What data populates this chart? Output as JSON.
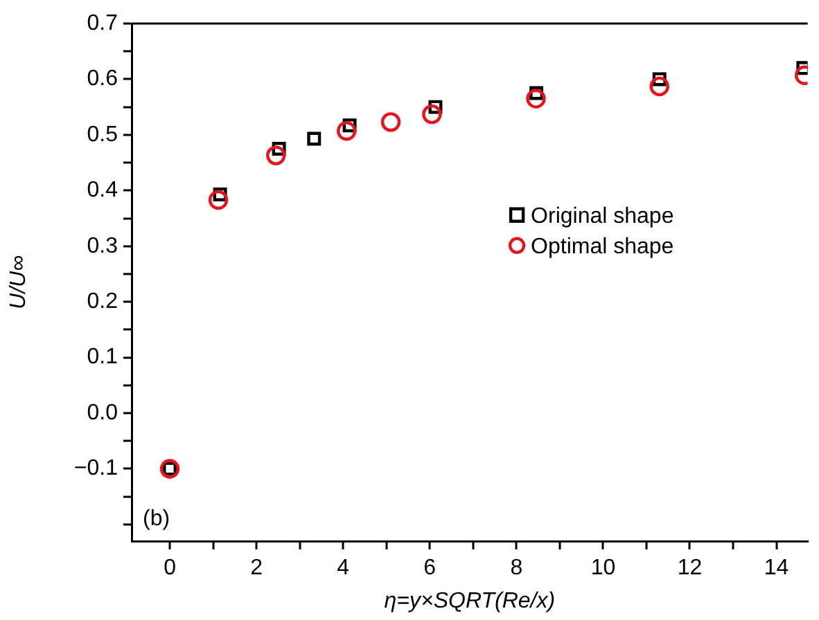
{
  "chart_data": {
    "type": "scatter",
    "xlabel": "η=y×SQRT(Re/x)",
    "ylabel": "U/U∞",
    "annotations": [
      "(b)"
    ],
    "xlim": [
      -0.88,
      14.72
    ],
    "ylim": [
      -0.23,
      0.7
    ],
    "xticks": [
      0,
      {
        "value": 1,
        "label": null
      },
      2,
      {
        "value": 3,
        "label": null
      },
      4,
      {
        "value": 5,
        "label": null
      },
      6,
      {
        "value": 7,
        "label": null
      },
      8,
      {
        "value": 9,
        "label": null
      },
      10,
      {
        "value": 11,
        "label": null
      },
      12,
      {
        "value": 13,
        "label": null
      },
      14
    ],
    "yticks": [
      {
        "value": -0.2,
        "label": null
      },
      {
        "value": -0.15,
        "label": null
      },
      {
        "value": -0.1,
        "label": "−0.1"
      },
      {
        "value": -0.05,
        "label": null
      },
      {
        "value": 0,
        "label": "0.0"
      },
      {
        "value": 0.05,
        "label": null
      },
      0.1,
      {
        "value": 0.15,
        "label": null
      },
      0.2,
      {
        "value": 0.25,
        "label": null
      },
      0.3,
      {
        "value": 0.35,
        "label": null
      },
      0.4,
      {
        "value": 0.45,
        "label": null
      },
      0.5,
      {
        "value": 0.55,
        "label": null
      },
      0.6,
      {
        "value": 0.65,
        "label": null
      },
      0.7
    ],
    "grid": false,
    "legend": "right",
    "series": [
      {
        "name": "Original shape",
        "color": "#000000",
        "marker": "square",
        "x": [
          0,
          1.16,
          2.52,
          3.33,
          4.15,
          6.13,
          8.46,
          11.3,
          14.62
        ],
        "values": [
          -0.1,
          0.393,
          0.475,
          0.493,
          0.517,
          0.55,
          0.575,
          0.6,
          0.62
        ]
      },
      {
        "name": "Optimal shape",
        "color": "#e8141c",
        "marker": "circle",
        "x": [
          0,
          1.12,
          2.45,
          4.08,
          5.1,
          6.05,
          8.45,
          11.3,
          14.65
        ],
        "values": [
          -0.1,
          0.383,
          0.463,
          0.507,
          0.523,
          0.537,
          0.565,
          0.587,
          0.607
        ]
      }
    ]
  }
}
